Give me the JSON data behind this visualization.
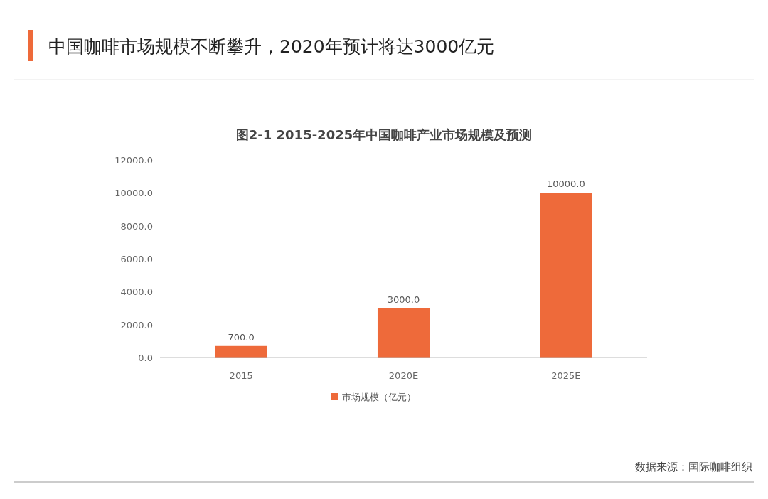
{
  "chart_data": {
    "type": "bar",
    "title": "中国咖啡市场规模不断攀升，2020年预计将达3000亿元",
    "subtitle": "图2-1 2015-2025年中国咖啡产业市场规模及预测",
    "categories": [
      "2015",
      "2020E",
      "2025E"
    ],
    "series": [
      {
        "name": "市场规模（亿元）",
        "color": "#ee6a3a",
        "values": [
          700,
          3000,
          10000
        ],
        "value_labels": [
          "700.0",
          "3000.0",
          "10000.0"
        ]
      }
    ],
    "ylim": [
      0,
      12000
    ],
    "yticks": [
      {
        "value": 0,
        "label": "0.0"
      },
      {
        "value": 2000,
        "label": "2000.0"
      },
      {
        "value": 4000,
        "label": "4000.0"
      },
      {
        "value": 6000,
        "label": "6000.0"
      },
      {
        "value": 8000,
        "label": "8000.0"
      },
      {
        "value": 10000,
        "label": "10000.0"
      },
      {
        "value": 12000,
        "label": "12000.0"
      }
    ],
    "legend": "bottom",
    "annotations": [
      "数据来源：国际咖啡组织"
    ]
  }
}
